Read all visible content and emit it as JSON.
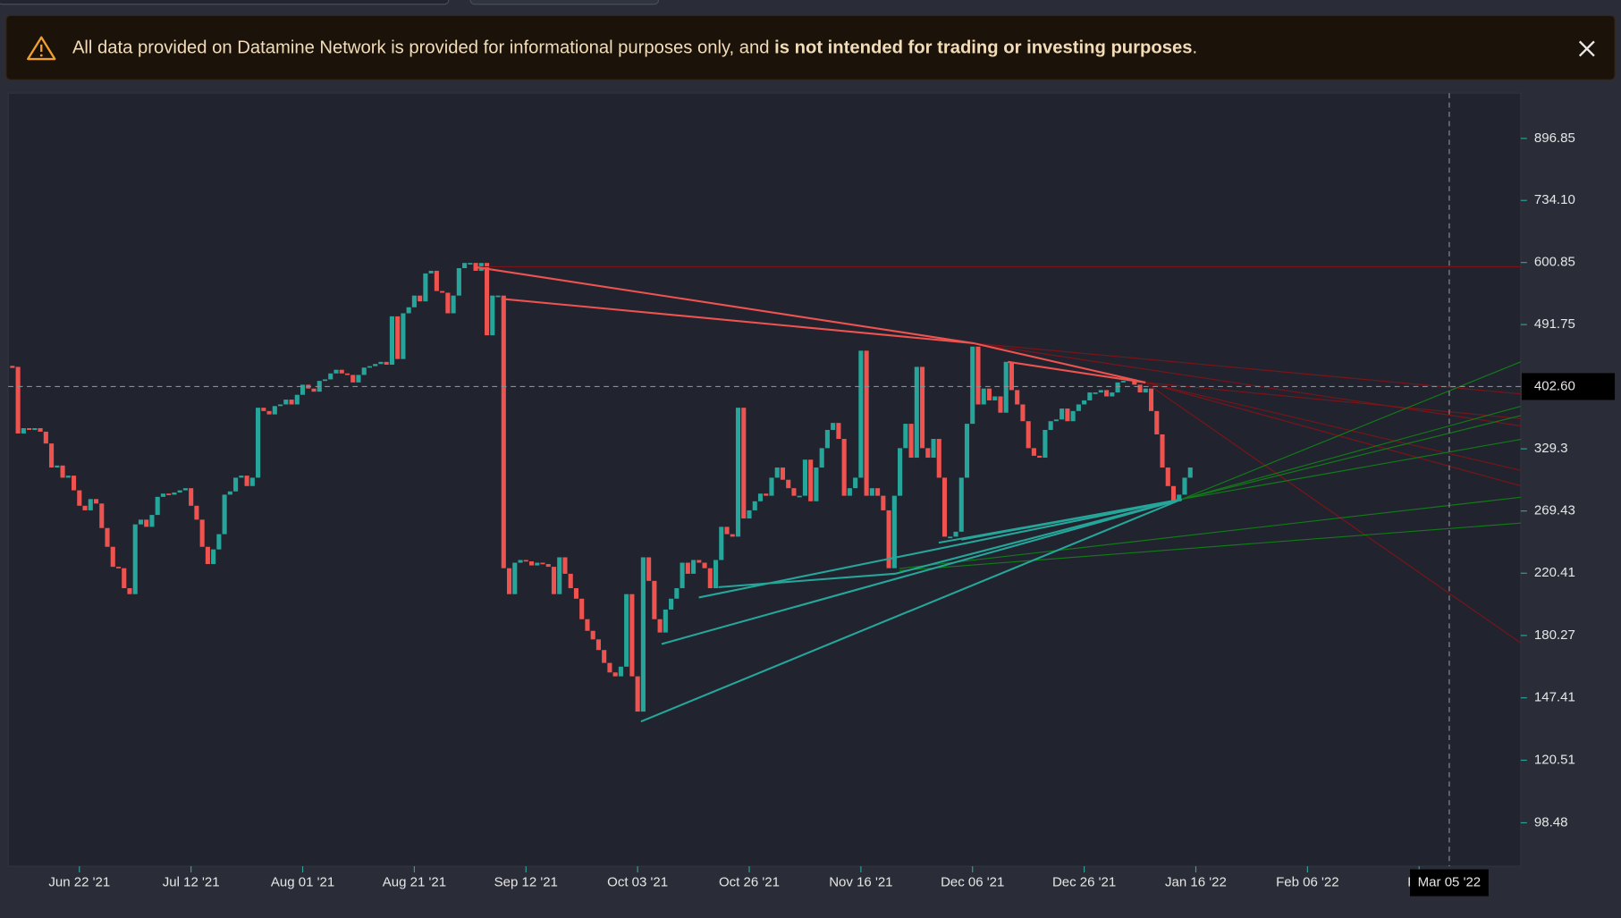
{
  "notice": {
    "text": "All data provided on Datamine Network is provided for informational purposes only, and ",
    "emphasis": "is not intended for trading or investing purposes",
    "end": "."
  },
  "chart_data": {
    "type": "candlestick",
    "log_scale": true,
    "up_color": "#26a69a",
    "down_color": "#ef5350",
    "xlim": [
      -0.74,
      270.2
    ],
    "ylim": [
      85.6,
      1038
    ],
    "yticks": [
      896.85,
      {
        "value": 734.1,
        "label": "734.10"
      },
      600.85,
      491.75,
      329.3,
      269.43,
      220.41,
      180.27,
      147.41,
      120.51,
      98.48
    ],
    "yticks_fix": null,
    "xticks": [
      {
        "value": 12,
        "label": "Jun 22 '21"
      },
      {
        "value": 32,
        "label": "Jul 12 '21"
      },
      {
        "value": 52,
        "label": "Aug 01 '21"
      },
      {
        "value": 72,
        "label": "Aug 21 '21"
      },
      {
        "value": 92,
        "label": "Sep 12 '21"
      },
      {
        "value": 112,
        "label": "Oct 03 '21"
      },
      {
        "value": 132,
        "label": "Oct 26 '21"
      },
      {
        "value": 152,
        "label": "Nov 16 '21"
      },
      {
        "value": 172,
        "label": "Dec 06 '21"
      },
      {
        "value": 192,
        "label": "Dec 26 '21"
      },
      {
        "value": 212,
        "label": "Jan 16 '22"
      },
      {
        "value": 232,
        "label": "Feb 06 '22"
      },
      {
        "value": 252,
        "label": "Feb"
      }
    ],
    "crosshair": {
      "price": {
        "value": 402.6,
        "label": "402.60"
      },
      "date": {
        "value": 257.4,
        "label": "Mar 05 '22"
      }
    },
    "values": [
      429,
      346,
      352,
      350,
      352,
      348,
      335,
      310,
      312,
      300,
      302,
      288,
      274,
      270,
      280,
      276,
      255,
      240,
      225,
      224,
      210,
      206,
      258,
      262,
      256,
      266,
      282,
      285,
      284,
      286,
      288,
      290,
      274,
      262,
      240,
      227,
      238,
      250,
      284,
      287,
      300,
      302,
      292,
      300,
      376,
      372,
      368,
      378,
      380,
      386,
      380,
      392,
      405,
      400,
      396,
      410,
      412,
      420,
      425,
      420,
      418,
      408,
      418,
      428,
      430,
      433,
      436,
      432,
      505,
      440,
      510,
      520,
      540,
      530,
      580,
      585,
      548,
      545,
      510,
      540,
      590,
      600,
      600,
      585,
      600,
      475,
      540,
      540,
      224,
      206,
      228,
      230,
      229,
      226,
      228,
      227,
      225,
      206,
      232,
      220,
      210,
      203,
      190,
      183,
      178,
      172,
      165,
      160,
      158,
      163,
      206,
      158,
      141,
      232,
      215,
      190,
      182,
      196,
      203,
      210,
      228,
      220,
      230,
      228,
      224,
      210,
      230,
      256,
      250,
      248,
      376,
      263,
      270,
      278,
      285,
      283,
      300,
      310,
      298,
      290,
      283,
      283,
      318,
      278,
      310,
      330,
      350,
      358,
      340,
      283,
      290,
      300,
      452,
      283,
      290,
      283,
      270,
      224,
      283,
      330,
      357,
      320,
      429,
      330,
      320,
      340,
      300,
      248,
      248,
      252,
      300,
      357,
      458,
      380,
      400,
      385,
      390,
      370,
      436,
      398,
      380,
      360,
      330,
      322,
      320,
      350,
      360,
      362,
      375,
      360,
      372,
      380,
      385,
      395,
      395,
      398,
      390,
      395,
      408,
      410,
      412,
      405,
      395,
      400,
      372,
      345,
      310,
      292,
      278,
      284,
      300,
      310
    ]
  }
}
